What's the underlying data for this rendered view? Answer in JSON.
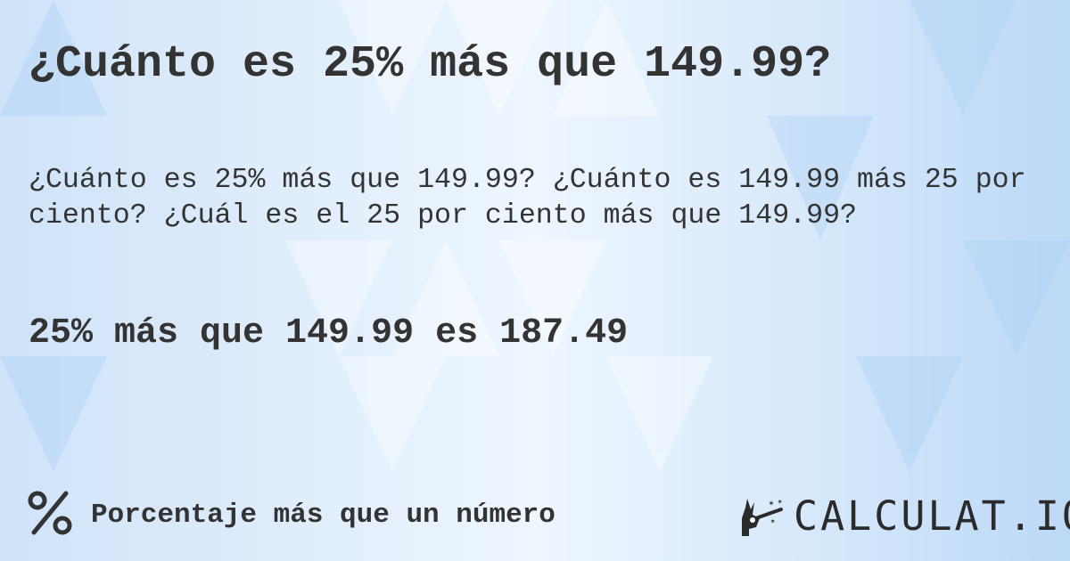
{
  "title": "¿Cuánto es 25% más que 149.99?",
  "question": "¿Cuánto es 25% más que 149.99? ¿Cuánto es 149.99 más 25 por ciento? ¿Cuál es el 25 por ciento más que 149.99?",
  "result": "25% más que 149.99 es 187.49",
  "footer": {
    "icon": "percent-icon",
    "label": "Porcentaje más que un número"
  },
  "logo": {
    "text": "CALCULAT.IO",
    "icon": "magic-hand-wand-icon"
  },
  "colors": {
    "text": "#333333",
    "background": "#dcecfb"
  }
}
